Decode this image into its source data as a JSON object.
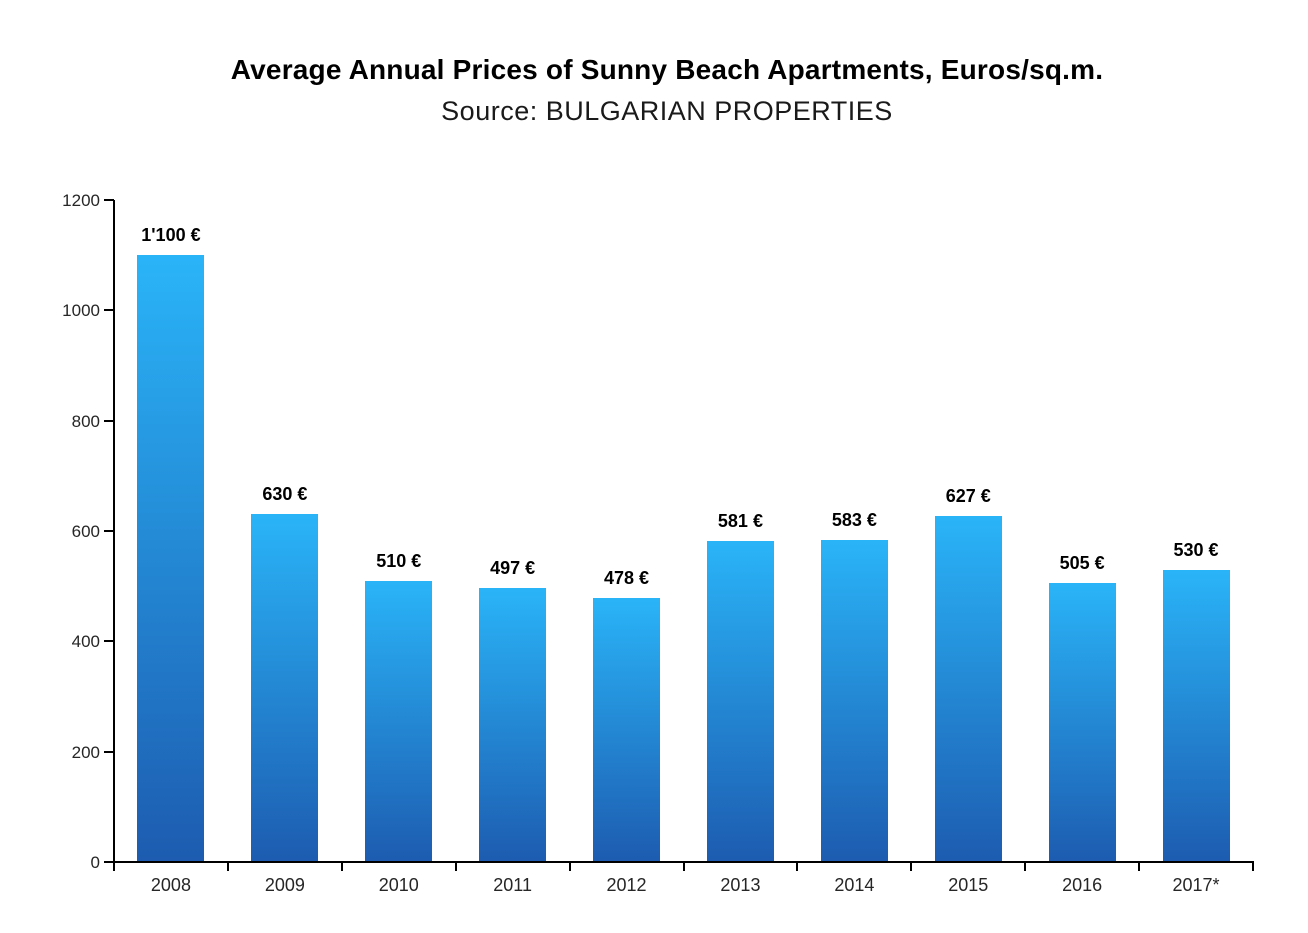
{
  "chart_data": {
    "type": "bar",
    "title": "Average Annual Prices of Sunny Beach Apartments, Euros/sq.m.",
    "subtitle": "Source: BULGARIAN PROPERTIES",
    "categories": [
      "2008",
      "2009",
      "2010",
      "2011",
      "2012",
      "2013",
      "2014",
      "2015",
      "2016",
      "2017*"
    ],
    "values": [
      1100,
      630,
      510,
      497,
      478,
      581,
      583,
      627,
      505,
      530
    ],
    "data_labels": [
      "1'100 €",
      "630 €",
      "510 €",
      "497 €",
      "478 €",
      "581 €",
      "583 €",
      "627 €",
      "505 €",
      "530 €"
    ],
    "xlabel": "",
    "ylabel": "",
    "ylim": [
      0,
      1200
    ],
    "ytick_interval": 200,
    "ytick_labels": [
      "0",
      "200",
      "400",
      "600",
      "800",
      "1000",
      "1200"
    ],
    "grid": false,
    "legend": "none",
    "colors": {
      "bar_gradient_top": "#2AB4F8",
      "bar_gradient_bottom": "#1D5CB0",
      "axis": "#000000",
      "tick_label": "#262626",
      "data_label": "#000000",
      "background": "#FFFFFF"
    }
  }
}
